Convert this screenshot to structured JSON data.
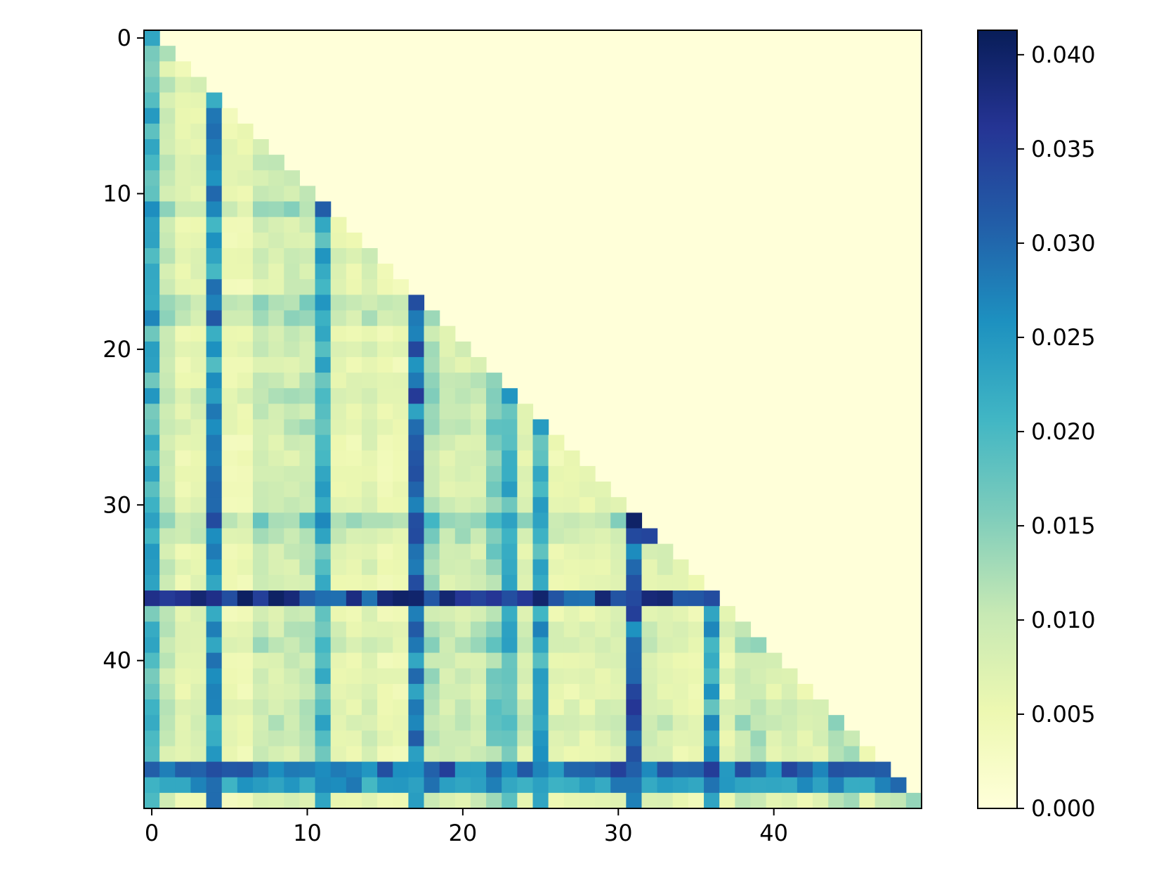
{
  "chart_data": {
    "type": "heatmap",
    "title": "",
    "xlabel": "",
    "ylabel": "",
    "rows": 50,
    "cols": 50,
    "shape": "lower-triangular",
    "x_ticks": [
      "0",
      "10",
      "20",
      "30",
      "40"
    ],
    "y_ticks": [
      "0",
      "10",
      "20",
      "30",
      "40"
    ],
    "colorbar": {
      "colormap": "YlGnBu",
      "range": [
        0.0,
        0.0413
      ],
      "tick_values": [
        0.0,
        0.005,
        0.01,
        0.015,
        0.02,
        0.025,
        0.03,
        0.035,
        0.04
      ],
      "tick_labels": [
        "0.000",
        "0.005",
        "0.010",
        "0.015",
        "0.020",
        "0.025",
        "0.030",
        "0.035",
        "0.040"
      ]
    },
    "colormap_stops": [
      "#ffffd9",
      "#edf8b1",
      "#c7e9b4",
      "#7fcdbb",
      "#41b6c4",
      "#1d91c0",
      "#225ea8",
      "#253494",
      "#081d58"
    ],
    "upper_triangle_value": 0.0,
    "column_values": [
      0.021,
      0.012,
      0.007,
      0.008,
      0.026,
      0.006,
      0.006,
      0.011,
      0.01,
      0.011,
      0.012,
      0.021,
      0.008,
      0.007,
      0.009,
      0.006,
      0.006,
      0.03,
      0.014,
      0.01,
      0.01,
      0.011,
      0.018,
      0.021,
      0.009,
      0.023,
      0.007,
      0.007,
      0.007,
      0.008,
      0.009,
      0.031,
      0.009,
      0.009,
      0.007,
      0.006,
      0.023,
      0.007,
      0.012,
      0.013,
      0.009,
      0.009,
      0.008,
      0.009,
      0.016,
      0.015,
      0.008,
      0.016,
      0.015,
      0.012
    ],
    "row_values": [
      0.023,
      0.018,
      0.01,
      0.021,
      0.017,
      0.015,
      0.02,
      0.019,
      0.023,
      0.021,
      0.019,
      0.031,
      0.014,
      0.013,
      0.022,
      0.016,
      0.015,
      0.033,
      0.03,
      0.016,
      0.02,
      0.015,
      0.019,
      0.027,
      0.019,
      0.022,
      0.014,
      0.013,
      0.014,
      0.016,
      0.016,
      0.04,
      0.028,
      0.016,
      0.017,
      0.016,
      0.037,
      0.016,
      0.022,
      0.026,
      0.016,
      0.018,
      0.016,
      0.021,
      0.024,
      0.02,
      0.016,
      0.03,
      0.028,
      0.014
    ],
    "strong_rows": {
      "36": 0.037,
      "47": 0.032,
      "48": 0.027
    },
    "diagonal_values": {
      "0": 0.023,
      "11": 0.031,
      "17": 0.033,
      "31": 0.04,
      "32": 0.034,
      "48": 0.03,
      "49": 0.014
    }
  }
}
